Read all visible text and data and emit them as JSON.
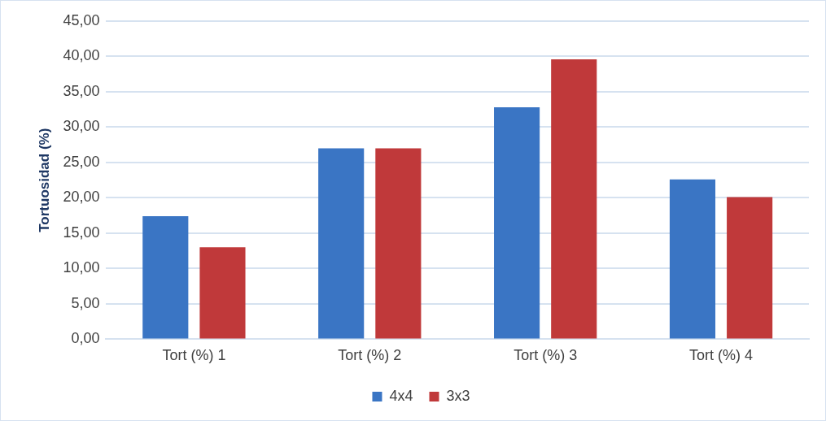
{
  "chart_data": {
    "type": "bar",
    "ylabel": "Tortuosidad (%)",
    "categories": [
      "Tort (%) 1",
      "Tort (%) 2",
      "Tort (%) 3",
      "Tort (%) 4"
    ],
    "series": [
      {
        "name": "4x4",
        "color": "#3a75c4",
        "values": [
          17.4,
          27.0,
          32.8,
          22.6
        ]
      },
      {
        "name": "3x3",
        "color": "#c0393a",
        "values": [
          13.0,
          27.0,
          39.6,
          20.1
        ]
      }
    ],
    "ylim": [
      0,
      45
    ],
    "yticks": [
      {
        "value": 0,
        "label": "0,00"
      },
      {
        "value": 5,
        "label": "5,00"
      },
      {
        "value": 10,
        "label": "10,00"
      },
      {
        "value": 15,
        "label": "15,00"
      },
      {
        "value": 20,
        "label": "20,00"
      },
      {
        "value": 25,
        "label": "25,00"
      },
      {
        "value": 30,
        "label": "30,00"
      },
      {
        "value": 35,
        "label": "35,00"
      },
      {
        "value": 40,
        "label": "40,00"
      },
      {
        "value": 45,
        "label": "45,00"
      }
    ],
    "grid": "y",
    "legend": "bottom"
  }
}
